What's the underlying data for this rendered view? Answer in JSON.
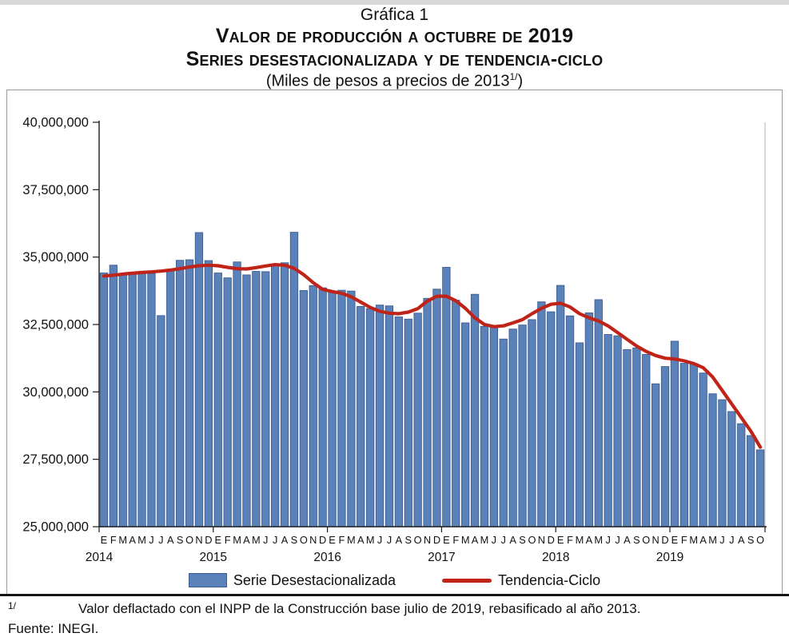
{
  "page": {
    "titles": {
      "line1": "Gráfica 1",
      "line2": "Valor de producción a octubre de 2019",
      "line3": "Series desestacionalizada y de tendencia-ciclo",
      "line4_prefix": "(Miles de pesos a precios de 2013",
      "line4_sup": "1/",
      "line4_suffix": ")"
    },
    "footnote": {
      "marker": "1/",
      "text": "Valor deflactado con el INPP de la Construcción base julio de 2019, rebasificado al año 2013.",
      "source": "Fuente: INEGI."
    }
  },
  "chart_data": {
    "type": "combo",
    "title": "Valor de producción a octubre de 2019",
    "subtitle": "Series desestacionalizada y de tendencia-ciclo (Miles de pesos a precios de 2013)",
    "y_axis": {
      "min": 25000000,
      "max": 40000000,
      "step": 2500000,
      "tick_labels": [
        "40,000,000",
        "37,500,000",
        "35,000,000",
        "32,500,000",
        "30,000,000",
        "27,500,000",
        "25,000,000"
      ]
    },
    "x_axis": {
      "month_letters": [
        "E",
        "F",
        "M",
        "A",
        "M",
        "J",
        "J",
        "A",
        "S",
        "O",
        "N",
        "D"
      ],
      "years": [
        "2014",
        "2015",
        "2016",
        "2017",
        "2018",
        "2019"
      ],
      "months_in_last_year": 10,
      "total_months": 70
    },
    "legend": [
      {
        "label": "Serie Desestacionalizada",
        "marker": "bar-swatch"
      },
      {
        "label": "Tendencia-Ciclo",
        "marker": "line-swatch"
      }
    ],
    "colors": {
      "bar_fill": "#5b81b9",
      "bar_stroke": "#3c5e94",
      "trend": "#c02318",
      "axis": "#1a1a1a",
      "plot_right_border": "#b5b5b5"
    },
    "series": [
      {
        "name": "Serie Desestacionalizada",
        "type": "bar",
        "values": [
          34410000,
          34700000,
          34380000,
          34440000,
          34420000,
          34390000,
          32830000,
          34510000,
          34880000,
          34900000,
          35910000,
          34870000,
          34410000,
          34230000,
          34820000,
          34340000,
          34470000,
          34460000,
          34730000,
          34790000,
          35920000,
          33760000,
          33940000,
          33860000,
          33710000,
          33770000,
          33740000,
          33170000,
          33090000,
          33220000,
          33190000,
          32780000,
          32700000,
          32920000,
          33470000,
          33810000,
          34620000,
          33400000,
          32560000,
          33620000,
          32430000,
          32400000,
          31960000,
          32330000,
          32480000,
          32680000,
          33340000,
          32970000,
          33950000,
          32820000,
          31820000,
          32930000,
          33420000,
          32130000,
          32080000,
          31570000,
          31630000,
          31390000,
          30300000,
          30940000,
          31880000,
          31060000,
          31040000,
          30700000,
          29930000,
          29710000,
          29270000,
          28820000,
          28380000,
          27850000
        ]
      },
      {
        "name": "Tendencia-Ciclo",
        "type": "line",
        "values": [
          34300000,
          34330000,
          34370000,
          34400000,
          34430000,
          34450000,
          34480000,
          34520000,
          34570000,
          34630000,
          34680000,
          34700000,
          34680000,
          34620000,
          34570000,
          34560000,
          34610000,
          34670000,
          34720000,
          34700000,
          34580000,
          34350000,
          34050000,
          33800000,
          33720000,
          33660000,
          33530000,
          33330000,
          33130000,
          32990000,
          32920000,
          32900000,
          32960000,
          33090000,
          33370000,
          33550000,
          33550000,
          33380000,
          33100000,
          32750000,
          32500000,
          32420000,
          32450000,
          32560000,
          32680000,
          32900000,
          33100000,
          33250000,
          33290000,
          33150000,
          32900000,
          32750000,
          32630000,
          32450000,
          32200000,
          31950000,
          31700000,
          31500000,
          31350000,
          31250000,
          31220000,
          31150000,
          31050000,
          30900000,
          30550000,
          30050000,
          29550000,
          29050000,
          28550000,
          27950000
        ]
      }
    ]
  }
}
